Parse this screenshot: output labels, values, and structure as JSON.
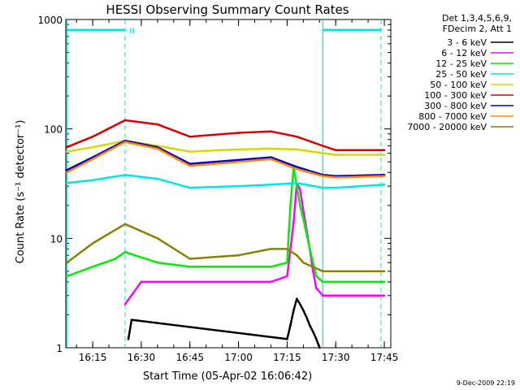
{
  "chart_data": {
    "type": "line",
    "title": "HESSI Observing Summary Count Rates",
    "xlabel": "Start Time (05-Apr-02 16:06:42)",
    "ylabel": "Count Rate (s⁻¹ detector⁻¹)",
    "yscale": "log",
    "ylim": [
      1,
      1000
    ],
    "xlim": [
      "16:06:42",
      "17:47:00"
    ],
    "x_ticks": [
      "16:15",
      "16:30",
      "16:45",
      "17:00",
      "17:15",
      "17:30",
      "17:45"
    ],
    "y_ticks": [
      "1",
      "10",
      "100",
      "1000"
    ],
    "legend_position": "right",
    "legend_header": [
      "Det 1,3,4,5,6,9,",
      "FDecim 2, Att 1"
    ],
    "footer": "9-Dec-2009 22:19",
    "annotations": {
      "night_markers": [
        "16:07",
        "17:26"
      ],
      "saa_lines": [
        "16:25",
        "17:44"
      ],
      "flag_label": "N",
      "flag_value": 800
    },
    "series": [
      {
        "name": "3 - 6 keV",
        "color": "#000000",
        "x": [
          "16:26",
          "16:27",
          "17:15",
          "17:16",
          "17:17",
          "17:18",
          "17:19",
          "17:20",
          "17:21",
          "17:22",
          "17:23",
          "17:24",
          "17:25"
        ],
        "values": [
          1.2,
          1.8,
          1.2,
          1.6,
          2.2,
          2.8,
          2.5,
          2.2,
          1.9,
          1.6,
          1.4,
          1.2,
          1.0
        ]
      },
      {
        "name": "6 - 12 keV",
        "color": "#ff00ff",
        "x": [
          "16:25",
          "16:30",
          "16:45",
          "17:00",
          "17:10",
          "17:15",
          "17:17",
          "17:18",
          "17:19",
          "17:20",
          "17:22",
          "17:23",
          "17:24",
          "17:26",
          "17:30",
          "17:45"
        ],
        "values": [
          2.5,
          4.0,
          4.0,
          4.0,
          4.0,
          4.5,
          14,
          32,
          28,
          18,
          8,
          5,
          3.5,
          3.0,
          3.0,
          3.0
        ]
      },
      {
        "name": "12 - 25 keV",
        "color": "#00ee00",
        "x": [
          "16:07",
          "16:15",
          "16:22",
          "16:25",
          "16:28",
          "16:35",
          "16:45",
          "17:00",
          "17:10",
          "17:15",
          "17:16",
          "17:17",
          "17:18",
          "17:19",
          "17:20",
          "17:22",
          "17:24",
          "17:26",
          "17:30",
          "17:45"
        ],
        "values": [
          4.5,
          5.5,
          6.5,
          7.5,
          7.0,
          6.0,
          5.5,
          5.5,
          5.5,
          6.0,
          20,
          45,
          30,
          20,
          15,
          8,
          4.5,
          4.0,
          4.0,
          4.0
        ]
      },
      {
        "name": "25 - 50 keV",
        "color": "#00e5e5",
        "x": [
          "16:07",
          "16:15",
          "16:25",
          "16:35",
          "16:45",
          "17:00",
          "17:10",
          "17:18",
          "17:26",
          "17:30",
          "17:45"
        ],
        "values": [
          32,
          34,
          38,
          35,
          29,
          30,
          31,
          32,
          29,
          29,
          31
        ]
      },
      {
        "name": "50 - 100 keV",
        "color": "#d8d800",
        "x": [
          "16:07",
          "16:15",
          "16:25",
          "16:35",
          "16:45",
          "17:00",
          "17:10",
          "17:18",
          "17:26",
          "17:30",
          "17:45"
        ],
        "values": [
          62,
          68,
          78,
          70,
          62,
          65,
          66,
          65,
          60,
          58,
          58
        ]
      },
      {
        "name": "100 - 300 keV",
        "color": "#dd0000",
        "x": [
          "16:07",
          "16:15",
          "16:25",
          "16:35",
          "16:45",
          "17:00",
          "17:10",
          "17:18",
          "17:26",
          "17:30",
          "17:45"
        ],
        "values": [
          68,
          85,
          120,
          110,
          85,
          92,
          95,
          85,
          70,
          64,
          64
        ]
      },
      {
        "name": "300 - 800 keV",
        "color": "#0000cc",
        "x": [
          "16:07",
          "16:15",
          "16:25",
          "16:35",
          "16:45",
          "17:00",
          "17:10",
          "17:18",
          "17:26",
          "17:30",
          "17:45"
        ],
        "values": [
          42,
          55,
          78,
          68,
          48,
          52,
          55,
          45,
          38,
          37,
          38
        ]
      },
      {
        "name": "800 - 7000 keV",
        "color": "#ff8800",
        "x": [
          "16:07",
          "16:15",
          "16:25",
          "16:35",
          "16:45",
          "17:00",
          "17:10",
          "17:18",
          "17:26",
          "17:30",
          "17:45"
        ],
        "values": [
          40,
          53,
          76,
          66,
          46,
          50,
          53,
          43,
          37,
          36,
          37
        ]
      },
      {
        "name": "7000 - 20000 keV",
        "color": "#8b8000",
        "x": [
          "16:07",
          "16:15",
          "16:25",
          "16:35",
          "16:45",
          "17:00",
          "17:10",
          "17:15",
          "17:18",
          "17:20",
          "17:26",
          "17:30",
          "17:45"
        ],
        "values": [
          6.0,
          9.0,
          13.5,
          10.0,
          6.5,
          7.0,
          8.0,
          8.0,
          7.0,
          6.0,
          5.0,
          5.0,
          5.0
        ]
      }
    ]
  }
}
